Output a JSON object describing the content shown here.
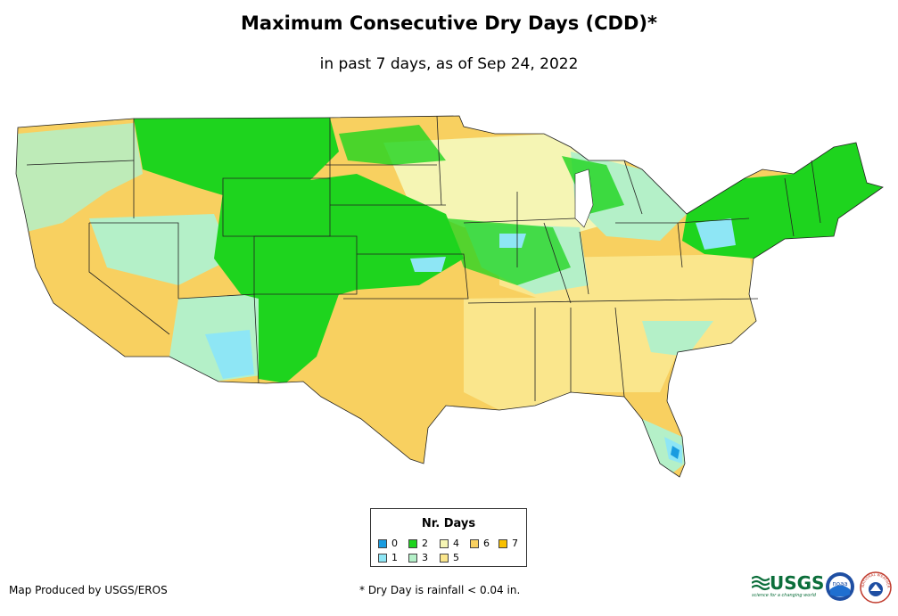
{
  "title": "Maximum Consecutive Dry Days (CDD)*",
  "subtitle": "in past 7 days, as of Sep 24, 2022",
  "legend": {
    "title": "Nr. Days",
    "items": [
      {
        "label": "0",
        "color": "#1a9ce0"
      },
      {
        "label": "1",
        "color": "#8ee6f5"
      },
      {
        "label": "2",
        "color": "#1ed41e"
      },
      {
        "label": "3",
        "color": "#b4f0c8"
      },
      {
        "label": "4",
        "color": "#f5f5b4"
      },
      {
        "label": "5",
        "color": "#fae68c"
      },
      {
        "label": "6",
        "color": "#f8d060"
      },
      {
        "label": "7",
        "color": "#f8c000"
      }
    ]
  },
  "footer": {
    "producer": "Map Produced by USGS/EROS",
    "note": "* Dry Day is rainfall < 0.04 in."
  },
  "logos": {
    "usgs": "USGS",
    "usgs_tagline": "science for a changing world",
    "noaa": "noaa",
    "nws": "NATIONAL WEATHER SERVICE"
  }
}
